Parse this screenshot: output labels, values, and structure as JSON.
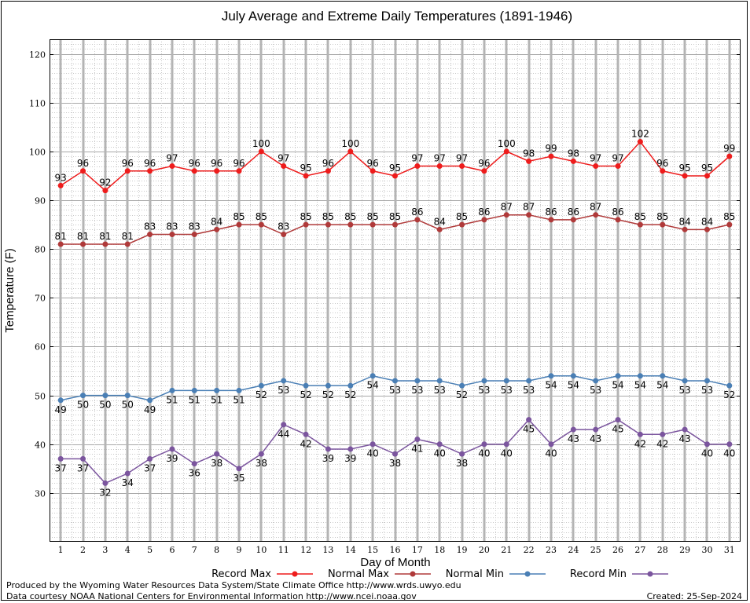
{
  "chart_data": {
    "type": "line",
    "title": "July Average and Extreme Daily Temperatures (1891-1946)",
    "xlabel": "Day of Month",
    "ylabel": "Temperature (F)",
    "ylim": [
      20,
      123
    ],
    "yticks": [
      30,
      40,
      50,
      60,
      70,
      80,
      90,
      100,
      110,
      120
    ],
    "x": [
      1,
      2,
      3,
      4,
      5,
      6,
      7,
      8,
      9,
      10,
      11,
      12,
      13,
      14,
      15,
      16,
      17,
      18,
      19,
      20,
      21,
      22,
      23,
      24,
      25,
      26,
      27,
      28,
      29,
      30,
      31
    ],
    "grid": true,
    "legend_position": "bottom",
    "series": [
      {
        "name": "Record Max",
        "color": "#ee1c1c",
        "label_pos": "above",
        "values": [
          93,
          96,
          92,
          96,
          96,
          97,
          96,
          96,
          96,
          100,
          97,
          95,
          96,
          100,
          96,
          95,
          97,
          97,
          97,
          96,
          100,
          98,
          99,
          98,
          97,
          97,
          102,
          96,
          95,
          95,
          99
        ]
      },
      {
        "name": "Normal Max",
        "color": "#b03a3a",
        "label_pos": "above",
        "values": [
          81,
          81,
          81,
          81,
          83,
          83,
          83,
          84,
          85,
          85,
          83,
          85,
          85,
          85,
          85,
          85,
          86,
          84,
          85,
          86,
          87,
          87,
          86,
          86,
          87,
          86,
          85,
          85,
          84,
          84,
          85
        ]
      },
      {
        "name": "Normal Min",
        "color": "#4a7fb5",
        "label_pos": "below",
        "values": [
          49,
          50,
          50,
          50,
          49,
          51,
          51,
          51,
          51,
          52,
          53,
          52,
          52,
          52,
          54,
          53,
          53,
          53,
          52,
          53,
          53,
          53,
          54,
          54,
          53,
          54,
          54,
          54,
          53,
          53,
          52
        ]
      },
      {
        "name": "Record Min",
        "color": "#7b559e",
        "label_pos": "below",
        "values": [
          37,
          37,
          32,
          34,
          37,
          39,
          36,
          38,
          35,
          38,
          44,
          42,
          39,
          39,
          40,
          38,
          41,
          40,
          38,
          40,
          40,
          45,
          40,
          43,
          43,
          45,
          42,
          42,
          43,
          40,
          40
        ]
      }
    ]
  },
  "footer": {
    "produced_by": "Produced by the Wyoming Water Resources Data System/State Climate Office http://www.wrds.uwyo.edu",
    "data_courtesy": "Data courtesy NOAA National Centers for Environmental Information http://www.ncei.noaa.gov",
    "created": "Created:  25-Sep-2024"
  }
}
